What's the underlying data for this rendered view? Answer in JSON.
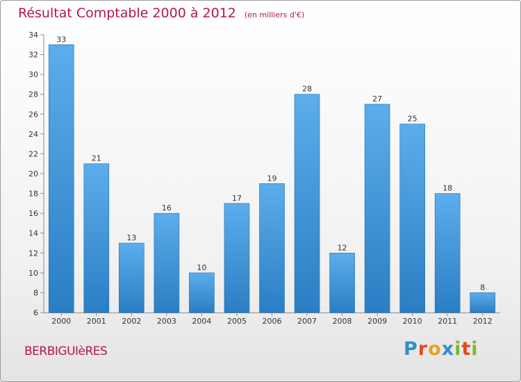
{
  "title": "Résultat Comptable 2000 à 2012",
  "subtitle": "(en milliers d'€)",
  "commune": "BERBIGUIèRES",
  "brand": {
    "letters": [
      "P",
      "r",
      "o",
      "x",
      "i",
      "t",
      "i"
    ],
    "colors": [
      "#2f8fce",
      "#e8481d",
      "#e8a31d",
      "#2f8fce",
      "#7cb82f",
      "#e8481d",
      "#7cb82f"
    ]
  },
  "colors": {
    "bar": "#4a9de0",
    "bar_dark": "#2a7fc4",
    "title": "#b3174a"
  },
  "chart_data": {
    "type": "bar",
    "categories": [
      "2000",
      "2001",
      "2002",
      "2003",
      "2004",
      "2005",
      "2006",
      "2007",
      "2008",
      "2009",
      "2010",
      "2011",
      "2012"
    ],
    "values": [
      33,
      21,
      13,
      16,
      10,
      17,
      19,
      28,
      12,
      27,
      25,
      18,
      8
    ],
    "ylim": [
      6,
      34
    ],
    "yticks": [
      6,
      8,
      10,
      12,
      14,
      16,
      18,
      20,
      22,
      24,
      26,
      28,
      30,
      32,
      34
    ],
    "xlabel": "",
    "ylabel": "",
    "grid": false
  }
}
